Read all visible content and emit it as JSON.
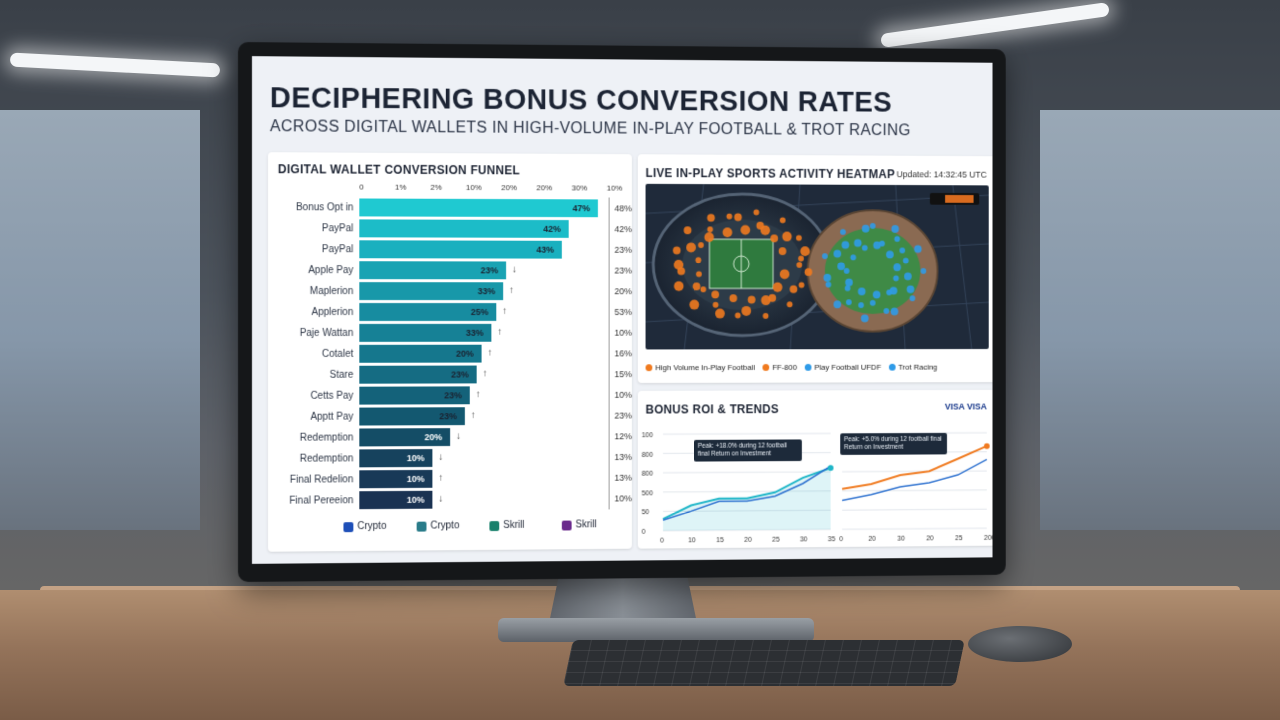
{
  "screen": {
    "title": "DECIPHERING BONUS CONVERSION RATES",
    "subtitle": "ACROSS DIGITAL WALLETS IN HIGH-VOLUME IN-PLAY FOOTBALL & TROT RACING"
  },
  "funnel": {
    "title": "DIGITAL WALLET CONVERSION FUNNEL",
    "axis_ticks": [
      "0",
      "1%",
      "2%",
      "10%",
      "20%",
      "20%",
      "30%",
      "10%"
    ],
    "rows": [
      {
        "label": "Bonus Opt in",
        "value": "47%",
        "arrow": "",
        "right": "48%",
        "fill": 0.98,
        "color": "#1fc9d1"
      },
      {
        "label": "PayPal",
        "value": "42%",
        "arrow": "",
        "right": "42%",
        "fill": 0.86,
        "color": "#1cbcc8"
      },
      {
        "label": "PayPal",
        "value": "43%",
        "arrow": "",
        "right": "23%",
        "fill": 0.83,
        "color": "#1ab0bf"
      },
      {
        "label": "Apple Pay",
        "value": "23%",
        "arrow": "↓",
        "right": "23%",
        "fill": 0.6,
        "color": "#19a3b3"
      },
      {
        "label": "Maplerion",
        "value": "33%",
        "arrow": "↑",
        "right": "20%",
        "fill": 0.59,
        "color": "#1898a9"
      },
      {
        "label": "Applerion",
        "value": "25%",
        "arrow": "↑",
        "right": "53%",
        "fill": 0.56,
        "color": "#178ca0"
      },
      {
        "label": "Paje Wattan",
        "value": "33%",
        "arrow": "↑",
        "right": "10%",
        "fill": 0.54,
        "color": "#168196"
      },
      {
        "label": "Cotalet",
        "value": "20%",
        "arrow": "↑",
        "right": "16%",
        "fill": 0.5,
        "color": "#15778d"
      },
      {
        "label": "Stare",
        "value": "23%",
        "arrow": "↑",
        "right": "15%",
        "fill": 0.48,
        "color": "#156c83"
      },
      {
        "label": "Cetts Pay",
        "value": "23%",
        "arrow": "↑",
        "right": "10%",
        "fill": 0.45,
        "color": "#14627a"
      },
      {
        "label": "Apptt Pay",
        "value": "23%",
        "arrow": "↑",
        "right": "23%",
        "fill": 0.43,
        "color": "#135870"
      },
      {
        "label": "Redemption",
        "value": "20%",
        "arrow": "↓",
        "right": "12%",
        "fill": 0.37,
        "color": "#144d66"
      },
      {
        "label": "Redemption",
        "value": "10%",
        "arrow": "↓",
        "right": "13%",
        "fill": 0.3,
        "color": "#16425d"
      },
      {
        "label": "Final Redelion",
        "value": "10%",
        "arrow": "↑",
        "right": "13%",
        "fill": 0.3,
        "color": "#183957"
      },
      {
        "label": "Final Pereeion",
        "value": "10%",
        "arrow": "↓",
        "right": "10%",
        "fill": 0.3,
        "color": "#1a3252"
      }
    ],
    "wallets": [
      {
        "name": "Crypto",
        "color": "#1e4fb8"
      },
      {
        "name": "Crypto",
        "color": "#2a7c8a"
      },
      {
        "name": "Skrill",
        "color": "#17806b"
      },
      {
        "name": "Skrill",
        "color": "#6a2a8c"
      }
    ]
  },
  "heatmap": {
    "title": "LIVE IN-PLAY SPORTS ACTIVITY HEATMAP",
    "updated": "Updated: 14:32:45 UTC",
    "legend": [
      {
        "label": "High Volume In-Play Football",
        "color": "#f07a1f"
      },
      {
        "label": "FF-800",
        "color": "#f07a1f"
      },
      {
        "label": "Play Football UFDF",
        "color": "#2f9be8"
      },
      {
        "label": "Trot Racing",
        "color": "#2f9be8"
      }
    ]
  },
  "roi": {
    "title": "BONUS ROI & TRENDS",
    "badge": "VISA VISA",
    "left_y_ticks": [
      "100",
      "800",
      "800",
      "500",
      "50",
      "0"
    ],
    "left_x_ticks": [
      "0",
      "10",
      "15",
      "20",
      "25",
      "30",
      "35"
    ],
    "right_x_ticks": [
      "0",
      "20",
      "30",
      "20",
      "25",
      "200"
    ],
    "tooltip_left": "Peak: +18.0% during 12 football final Return on Investment",
    "tooltip_right": "Peak: +5.0% during 12 football final Return on Investment",
    "colors": {
      "teal": "#1fb6c8",
      "orange": "#f07a1f",
      "blue": "#2a6fcf"
    }
  },
  "chart_data": [
    {
      "type": "bar",
      "title": "DIGITAL WALLET CONVERSION FUNNEL",
      "categories": [
        "Bonus Opt in",
        "PayPal",
        "PayPal",
        "Apple Pay",
        "Maplerion",
        "Applerion",
        "Paje Wattan",
        "Cotalet",
        "Stare",
        "Cetts Pay",
        "Apptt Pay",
        "Redemption",
        "Redemption",
        "Final Redelion",
        "Final Pereeion"
      ],
      "values": [
        47,
        42,
        43,
        23,
        33,
        25,
        33,
        20,
        23,
        23,
        23,
        20,
        10,
        10,
        10
      ],
      "xlabel": "",
      "ylabel": ""
    },
    {
      "type": "line",
      "title": "BONUS ROI & TRENDS",
      "x": [
        0,
        10,
        15,
        20,
        25,
        30,
        35
      ],
      "series": [
        {
          "values": [
            120,
            260,
            330,
            330,
            390,
            540,
            640
          ]
        },
        {
          "values": [
            110,
            200,
            300,
            300,
            350,
            480,
            660
          ]
        }
      ],
      "ylim": [
        0,
        1000
      ]
    },
    {
      "type": "line",
      "x": [
        0,
        20,
        30,
        20,
        25,
        200
      ],
      "series": [
        {
          "values": [
            420,
            470,
            560,
            600,
            730,
            860
          ]
        },
        {
          "values": [
            300,
            360,
            440,
            480,
            560,
            720
          ]
        }
      ]
    }
  ]
}
